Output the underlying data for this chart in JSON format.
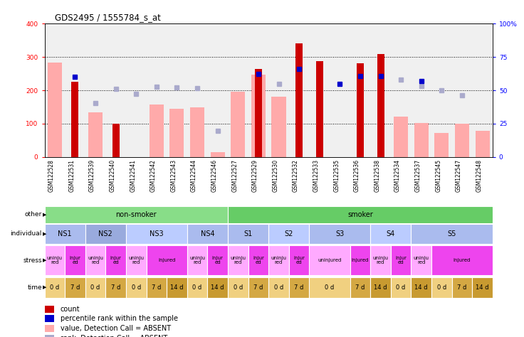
{
  "title": "GDS2495 / 1555784_s_at",
  "samples": [
    "GSM122528",
    "GSM122531",
    "GSM122539",
    "GSM122540",
    "GSM122541",
    "GSM122542",
    "GSM122543",
    "GSM122544",
    "GSM122546",
    "GSM122527",
    "GSM122529",
    "GSM122530",
    "GSM122532",
    "GSM122533",
    "GSM122535",
    "GSM122536",
    "GSM122538",
    "GSM122534",
    "GSM122537",
    "GSM122545",
    "GSM122547",
    "GSM122548"
  ],
  "count_values": [
    0,
    225,
    0,
    100,
    0,
    0,
    0,
    0,
    0,
    0,
    263,
    0,
    340,
    288,
    0,
    280,
    308,
    0,
    0,
    0,
    0,
    0
  ],
  "value_absent": [
    283,
    0,
    133,
    0,
    0,
    157,
    144,
    148,
    15,
    195,
    247,
    180,
    0,
    0,
    0,
    0,
    0,
    122,
    103,
    72,
    100,
    78
  ],
  "rank_present": [
    0,
    240,
    0,
    0,
    0,
    0,
    0,
    0,
    0,
    0,
    250,
    0,
    265,
    0,
    220,
    243,
    243,
    0,
    227,
    0,
    0,
    0
  ],
  "rank_absent": [
    0,
    0,
    162,
    205,
    190,
    210,
    208,
    207,
    78,
    0,
    0,
    220,
    0,
    0,
    0,
    0,
    0,
    233,
    213,
    200,
    185,
    0
  ],
  "ylim_left": [
    0,
    400
  ],
  "ylim_right": [
    0,
    100
  ],
  "yticks_left": [
    0,
    100,
    200,
    300,
    400
  ],
  "yticks_right": [
    0,
    25,
    50,
    75,
    100
  ],
  "ytick_labels_right": [
    "0",
    "25",
    "50",
    "75",
    "100%"
  ],
  "color_count": "#cc0000",
  "color_rank_present": "#0000cc",
  "color_value_absent": "#ffaaaa",
  "color_rank_absent": "#aaaacc",
  "chart_bg": "#f0f0f0",
  "bar_width": 0.7,
  "red_bar_width": 0.35,
  "other_row": {
    "label": "other",
    "groups": [
      {
        "text": "non-smoker",
        "start": 0,
        "end": 9,
        "color": "#88dd88"
      },
      {
        "text": "smoker",
        "start": 9,
        "end": 22,
        "color": "#66cc66"
      }
    ]
  },
  "individual_row": {
    "label": "individual",
    "groups": [
      {
        "text": "NS1",
        "start": 0,
        "end": 2,
        "color": "#aabbee"
      },
      {
        "text": "NS2",
        "start": 2,
        "end": 4,
        "color": "#99aadd"
      },
      {
        "text": "NS3",
        "start": 4,
        "end": 7,
        "color": "#bbccff"
      },
      {
        "text": "NS4",
        "start": 7,
        "end": 9,
        "color": "#aabbee"
      },
      {
        "text": "S1",
        "start": 9,
        "end": 11,
        "color": "#aabbee"
      },
      {
        "text": "S2",
        "start": 11,
        "end": 13,
        "color": "#bbccff"
      },
      {
        "text": "S3",
        "start": 13,
        "end": 16,
        "color": "#aabbee"
      },
      {
        "text": "S4",
        "start": 16,
        "end": 18,
        "color": "#bbccff"
      },
      {
        "text": "S5",
        "start": 18,
        "end": 22,
        "color": "#aabbee"
      }
    ]
  },
  "stress_row": {
    "label": "stress",
    "groups": [
      {
        "text": "uninju\nred",
        "start": 0,
        "end": 1,
        "color": "#ffaaff"
      },
      {
        "text": "injur\ned",
        "start": 1,
        "end": 2,
        "color": "#ee44ee"
      },
      {
        "text": "uninju\nred",
        "start": 2,
        "end": 3,
        "color": "#ffaaff"
      },
      {
        "text": "injur\ned",
        "start": 3,
        "end": 4,
        "color": "#ee44ee"
      },
      {
        "text": "uninju\nred",
        "start": 4,
        "end": 5,
        "color": "#ffaaff"
      },
      {
        "text": "injured",
        "start": 5,
        "end": 7,
        "color": "#ee44ee"
      },
      {
        "text": "uninju\nred",
        "start": 7,
        "end": 8,
        "color": "#ffaaff"
      },
      {
        "text": "injur\ned",
        "start": 8,
        "end": 9,
        "color": "#ee44ee"
      },
      {
        "text": "uninju\nred",
        "start": 9,
        "end": 10,
        "color": "#ffaaff"
      },
      {
        "text": "injur\ned",
        "start": 10,
        "end": 11,
        "color": "#ee44ee"
      },
      {
        "text": "uninju\nred",
        "start": 11,
        "end": 12,
        "color": "#ffaaff"
      },
      {
        "text": "injur\ned",
        "start": 12,
        "end": 13,
        "color": "#ee44ee"
      },
      {
        "text": "uninjured",
        "start": 13,
        "end": 15,
        "color": "#ffaaff"
      },
      {
        "text": "injured",
        "start": 15,
        "end": 16,
        "color": "#ee44ee"
      },
      {
        "text": "uninju\nred",
        "start": 16,
        "end": 17,
        "color": "#ffaaff"
      },
      {
        "text": "injur\ned",
        "start": 17,
        "end": 18,
        "color": "#ee44ee"
      },
      {
        "text": "uninju\nred",
        "start": 18,
        "end": 19,
        "color": "#ffaaff"
      },
      {
        "text": "injured",
        "start": 19,
        "end": 22,
        "color": "#ee44ee"
      }
    ]
  },
  "time_row": {
    "label": "time",
    "groups": [
      {
        "text": "0 d",
        "start": 0,
        "end": 1,
        "color": "#f0d080"
      },
      {
        "text": "7 d",
        "start": 1,
        "end": 2,
        "color": "#d4a843"
      },
      {
        "text": "0 d",
        "start": 2,
        "end": 3,
        "color": "#f0d080"
      },
      {
        "text": "7 d",
        "start": 3,
        "end": 4,
        "color": "#d4a843"
      },
      {
        "text": "0 d",
        "start": 4,
        "end": 5,
        "color": "#f0d080"
      },
      {
        "text": "7 d",
        "start": 5,
        "end": 6,
        "color": "#d4a843"
      },
      {
        "text": "14 d",
        "start": 6,
        "end": 7,
        "color": "#c89a30"
      },
      {
        "text": "0 d",
        "start": 7,
        "end": 8,
        "color": "#f0d080"
      },
      {
        "text": "14 d",
        "start": 8,
        "end": 9,
        "color": "#c89a30"
      },
      {
        "text": "0 d",
        "start": 9,
        "end": 10,
        "color": "#f0d080"
      },
      {
        "text": "7 d",
        "start": 10,
        "end": 11,
        "color": "#d4a843"
      },
      {
        "text": "0 d",
        "start": 11,
        "end": 12,
        "color": "#f0d080"
      },
      {
        "text": "7 d",
        "start": 12,
        "end": 13,
        "color": "#d4a843"
      },
      {
        "text": "0 d",
        "start": 13,
        "end": 15,
        "color": "#f0d080"
      },
      {
        "text": "7 d",
        "start": 15,
        "end": 16,
        "color": "#d4a843"
      },
      {
        "text": "14 d",
        "start": 16,
        "end": 17,
        "color": "#c89a30"
      },
      {
        "text": "0 d",
        "start": 17,
        "end": 18,
        "color": "#f0d080"
      },
      {
        "text": "14 d",
        "start": 18,
        "end": 19,
        "color": "#c89a30"
      },
      {
        "text": "0 d",
        "start": 19,
        "end": 20,
        "color": "#f0d080"
      },
      {
        "text": "7 d",
        "start": 20,
        "end": 21,
        "color": "#d4a843"
      },
      {
        "text": "14 d",
        "start": 21,
        "end": 22,
        "color": "#c89a30"
      }
    ]
  },
  "legend_items": [
    {
      "color": "#cc0000",
      "label": "count",
      "marker": "square"
    },
    {
      "color": "#0000cc",
      "label": "percentile rank within the sample",
      "marker": "square"
    },
    {
      "color": "#ffaaaa",
      "label": "value, Detection Call = ABSENT",
      "marker": "square"
    },
    {
      "color": "#aaaacc",
      "label": "rank, Detection Call = ABSENT",
      "marker": "square"
    }
  ]
}
